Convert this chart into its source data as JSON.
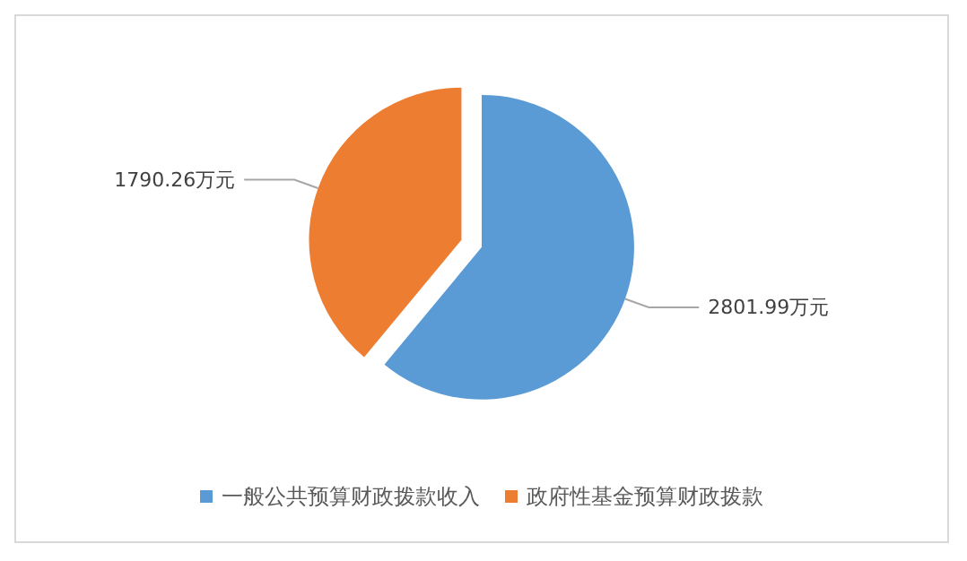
{
  "chart_data": {
    "type": "pie",
    "categories": [
      "一般公共预算财政拨款收入",
      "政府性基金预算财政拨款"
    ],
    "values": [
      2801.99,
      1790.26
    ],
    "colors": [
      "#5b9bd5",
      "#ed7d31"
    ],
    "value_labels": [
      "2801.99万元",
      "1790.26万元"
    ],
    "legend": "bottom"
  }
}
